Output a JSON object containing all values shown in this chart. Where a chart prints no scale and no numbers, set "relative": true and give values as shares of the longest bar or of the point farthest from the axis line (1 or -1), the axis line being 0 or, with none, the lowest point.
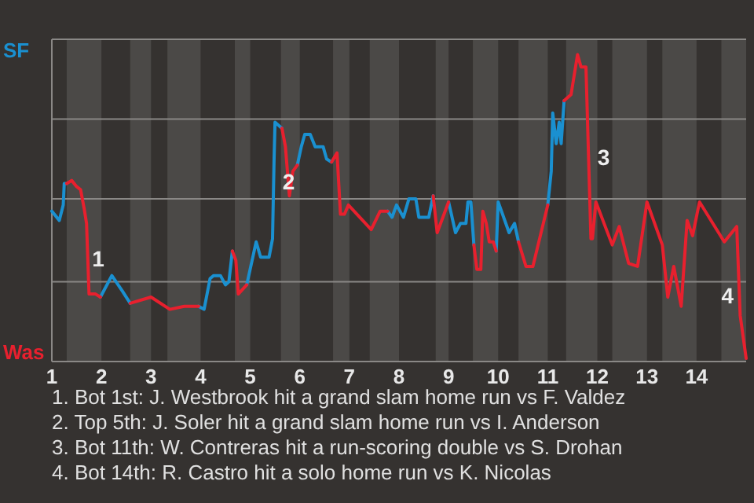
{
  "chart_data": {
    "type": "line",
    "relative": true,
    "x": [
      1,
      1.15,
      1.23,
      1.25,
      1.3,
      1.4,
      1.5,
      1.58,
      1.65,
      1.7,
      1.75,
      1.88,
      1.98,
      2.21,
      2.42,
      2.58,
      3,
      3.38,
      3.67,
      3.96,
      4.07,
      4.19,
      4.26,
      4.4,
      4.5,
      4.57,
      4.64,
      4.71,
      4.76,
      4.93,
      5.12,
      5.21,
      5.38,
      5.45,
      5.48,
      5.5,
      5.64,
      5.71,
      5.79,
      5.86,
      5.95,
      6.03,
      6.1,
      6.21,
      6.31,
      6.47,
      6.54,
      6.64,
      6.75,
      6.82,
      6.9,
      6.98,
      7.44,
      7.62,
      7.77,
      7.86,
      7.95,
      8.09,
      8.2,
      8.34,
      8.4,
      8.6,
      8.69,
      8.77,
      9,
      9.14,
      9.24,
      9.35,
      9.39,
      9.45,
      9.51,
      9.57,
      9.65,
      9.69,
      9.76,
      9.82,
      9.9,
      9.96,
      10,
      10.22,
      10.33,
      10.41,
      10.56,
      10.7,
      11,
      11.07,
      11.1,
      11.17,
      11.23,
      11.27,
      11.33,
      11.47,
      11.6,
      11.67,
      11.77,
      11.87,
      11.9,
      11.97,
      12.3,
      12.44,
      12.63,
      12.81,
      13,
      13.31,
      13.42,
      13.54,
      13.69,
      13.81,
      13.92,
      14.06,
      14.56,
      14.81,
      14.88,
      15
    ],
    "series": [
      {
        "color": "#1a90d0",
        "values": [
          0.49,
          0.46,
          0.51,
          0.58,
          0.58,
          null,
          null,
          null,
          null,
          null,
          null,
          null,
          0.21,
          0.28,
          0.23,
          0.19,
          null,
          null,
          null,
          0.18,
          0.17,
          0.27,
          0.28,
          0.28,
          0.25,
          0.26,
          0.36,
          null,
          null,
          0.25,
          0.39,
          0.34,
          0.34,
          0.4,
          0.65,
          0.78,
          0.76,
          null,
          null,
          null,
          0.64,
          0.7,
          0.74,
          0.74,
          0.7,
          0.7,
          0.66,
          0.65,
          null,
          null,
          null,
          null,
          null,
          null,
          0.49,
          0.47,
          0.51,
          0.47,
          0.53,
          0.53,
          0.47,
          0.47,
          0.54,
          null,
          0.52,
          0.42,
          0.45,
          0.45,
          0.52,
          0.52,
          0.38,
          null,
          null,
          null,
          null,
          null,
          null,
          0.36,
          0.52,
          0.42,
          0.45,
          0.39,
          null,
          null,
          0.51,
          0.62,
          0.81,
          0.71,
          0.78,
          0.71,
          0.85,
          null,
          null,
          null,
          null,
          null,
          null,
          null,
          null,
          null,
          null,
          null,
          null,
          null,
          null,
          null,
          null,
          null,
          null,
          null,
          null,
          null,
          null,
          null
        ]
      },
      {
        "color": "#e8202e",
        "values": [
          null,
          null,
          null,
          null,
          0.58,
          0.59,
          0.57,
          0.56,
          0.5,
          0.45,
          0.22,
          0.22,
          0.21,
          null,
          null,
          0.19,
          0.21,
          0.17,
          0.18,
          0.18,
          null,
          null,
          null,
          null,
          null,
          null,
          0.36,
          0.33,
          0.22,
          0.25,
          null,
          null,
          null,
          null,
          null,
          null,
          0.76,
          0.7,
          0.54,
          0.62,
          0.64,
          null,
          null,
          null,
          null,
          null,
          null,
          0.65,
          0.68,
          0.48,
          0.48,
          0.51,
          0.43,
          0.49,
          0.49,
          null,
          null,
          null,
          null,
          null,
          null,
          null,
          0.54,
          0.42,
          0.52,
          null,
          null,
          null,
          null,
          null,
          0.38,
          0.3,
          0.3,
          0.49,
          0.45,
          0.39,
          0.39,
          0.36,
          null,
          null,
          null,
          0.39,
          0.31,
          0.31,
          0.51,
          null,
          null,
          null,
          null,
          null,
          0.85,
          0.87,
          1,
          0.96,
          0.96,
          0.4,
          0.4,
          0.52,
          0.38,
          0.44,
          0.32,
          0.31,
          0.52,
          0.38,
          0.21,
          0.31,
          0.18,
          0.46,
          0.41,
          0.52,
          0.39,
          0.44,
          0.15,
          0.01
        ]
      }
    ],
    "xlim": [
      1,
      15
    ],
    "xticks": [
      1,
      2,
      3,
      4,
      5,
      6,
      7,
      8,
      9,
      10,
      11,
      12,
      13,
      14
    ],
    "ref_lines": [
      {
        "axis": "y",
        "value": 1.05,
        "color": "#8a8886"
      },
      {
        "axis": "y",
        "value": 0.79,
        "color": "#8a8886"
      },
      {
        "axis": "y",
        "value": 0.53,
        "color": "#8a8886"
      },
      {
        "axis": "y",
        "value": 0.26,
        "color": "#8a8886"
      }
    ],
    "bands": [
      {
        "axis": "x",
        "from": 1.3,
        "to": 2,
        "color": "#4b4947"
      },
      {
        "axis": "x",
        "from": 2.58,
        "to": 3,
        "color": "#4b4947"
      },
      {
        "axis": "x",
        "from": 3.33,
        "to": 4,
        "color": "#4b4947"
      },
      {
        "axis": "x",
        "from": 4.69,
        "to": 5,
        "color": "#4b4947"
      },
      {
        "axis": "x",
        "from": 5.62,
        "to": 6,
        "color": "#4b4947"
      },
      {
        "axis": "x",
        "from": 6.67,
        "to": 7,
        "color": "#4b4947"
      },
      {
        "axis": "x",
        "from": 7.41,
        "to": 8,
        "color": "#4b4947"
      },
      {
        "axis": "x",
        "from": 8.74,
        "to": 9,
        "color": "#4b4947"
      },
      {
        "axis": "x",
        "from": 9.49,
        "to": 10,
        "color": "#4b4947"
      },
      {
        "axis": "x",
        "from": 10.41,
        "to": 11,
        "color": "#4b4947"
      },
      {
        "axis": "x",
        "from": 11.37,
        "to": 12,
        "color": "#4b4947"
      },
      {
        "axis": "x",
        "from": 12.3,
        "to": 13,
        "color": "#4b4947"
      },
      {
        "axis": "x",
        "from": 13.31,
        "to": 14,
        "color": "#4b4947"
      },
      {
        "axis": "x",
        "from": 14.5,
        "to": 15,
        "color": "#4b4947"
      }
    ],
    "annotations": [
      "SF",
      "Was",
      {
        "text": "1",
        "x": 1.78,
        "y": 0.31
      },
      {
        "text": "2",
        "x": 5.62,
        "y": 0.56
      },
      {
        "text": "3",
        "x": 11.97,
        "y": 0.64
      },
      {
        "text": "4",
        "x": 15,
        "y": 0.19
      },
      "1. Bot 1st: J. Westbrook hit a grand slam home run vs F. Valdez",
      "2. Top 5th: J. Soler hit a grand slam home run vs I. Anderson",
      "3. Bot 11th: W. Contreras hit a run-scoring double vs S. Drohan",
      "4. Bot 14th: R. Castro hit a solo home run vs K. Nicolas"
    ]
  }
}
